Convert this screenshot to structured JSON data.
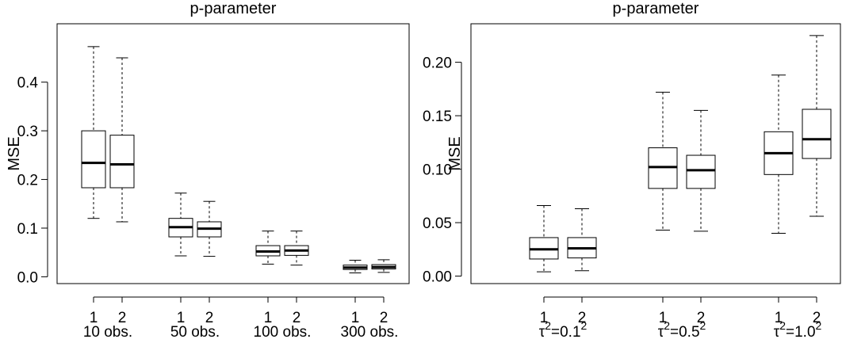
{
  "chart_data": [
    {
      "type": "box",
      "title": "p-parameter",
      "ylabel": "MSE",
      "ylim": [
        0.0,
        0.5
      ],
      "yticks": [
        "0.0",
        "0.1",
        "0.2",
        "0.3",
        "0.4"
      ],
      "groups": [
        {
          "label": "10 obs.",
          "boxes": [
            {
              "label": "1",
              "min": 0.12,
              "q1": 0.183,
              "median": 0.234,
              "q3": 0.3,
              "max": 0.473
            },
            {
              "label": "2",
              "min": 0.113,
              "q1": 0.183,
              "median": 0.231,
              "q3": 0.291,
              "max": 0.45
            }
          ]
        },
        {
          "label": "50 obs.",
          "boxes": [
            {
              "label": "1",
              "min": 0.043,
              "q1": 0.082,
              "median": 0.102,
              "q3": 0.12,
              "max": 0.172
            },
            {
              "label": "2",
              "min": 0.042,
              "q1": 0.082,
              "median": 0.099,
              "q3": 0.113,
              "max": 0.155
            }
          ]
        },
        {
          "label": "100 obs.",
          "boxes": [
            {
              "label": "1",
              "min": 0.026,
              "q1": 0.043,
              "median": 0.052,
              "q3": 0.064,
              "max": 0.094
            },
            {
              "label": "2",
              "min": 0.024,
              "q1": 0.044,
              "median": 0.054,
              "q3": 0.064,
              "max": 0.094
            }
          ]
        },
        {
          "label": "300 obs.",
          "boxes": [
            {
              "label": "1",
              "min": 0.008,
              "q1": 0.015,
              "median": 0.019,
              "q3": 0.024,
              "max": 0.034
            },
            {
              "label": "2",
              "min": 0.009,
              "q1": 0.016,
              "median": 0.02,
              "q3": 0.025,
              "max": 0.035
            }
          ]
        }
      ]
    },
    {
      "type": "box",
      "title": "p-parameter",
      "ylabel": "MSE",
      "ylim": [
        0.0,
        0.23
      ],
      "yticks": [
        "0.00",
        "0.05",
        "0.10",
        "0.15",
        "0.20"
      ],
      "groups": [
        {
          "label": "τ²=0.1²",
          "label_base": "τ",
          "label_sup1": "2",
          "label_mid": "=0.1",
          "label_sup2": "2",
          "boxes": [
            {
              "label": "1",
              "min": 0.004,
              "q1": 0.016,
              "median": 0.025,
              "q3": 0.036,
              "max": 0.066
            },
            {
              "label": "2",
              "min": 0.005,
              "q1": 0.017,
              "median": 0.026,
              "q3": 0.036,
              "max": 0.063
            }
          ]
        },
        {
          "label": "τ²=0.5²",
          "label_base": "τ",
          "label_sup1": "2",
          "label_mid": "=0.5",
          "label_sup2": "2",
          "boxes": [
            {
              "label": "1",
              "min": 0.043,
              "q1": 0.082,
              "median": 0.102,
              "q3": 0.12,
              "max": 0.172
            },
            {
              "label": "2",
              "min": 0.042,
              "q1": 0.082,
              "median": 0.099,
              "q3": 0.113,
              "max": 0.155
            }
          ]
        },
        {
          "label": "τ²=1.0²",
          "label_base": "τ",
          "label_sup1": "2",
          "label_mid": "=1.0",
          "label_sup2": "2",
          "boxes": [
            {
              "label": "1",
              "min": 0.04,
              "q1": 0.095,
              "median": 0.115,
              "q3": 0.135,
              "max": 0.188
            },
            {
              "label": "2",
              "min": 0.056,
              "q1": 0.11,
              "median": 0.128,
              "q3": 0.156,
              "max": 0.225
            }
          ]
        }
      ]
    }
  ]
}
